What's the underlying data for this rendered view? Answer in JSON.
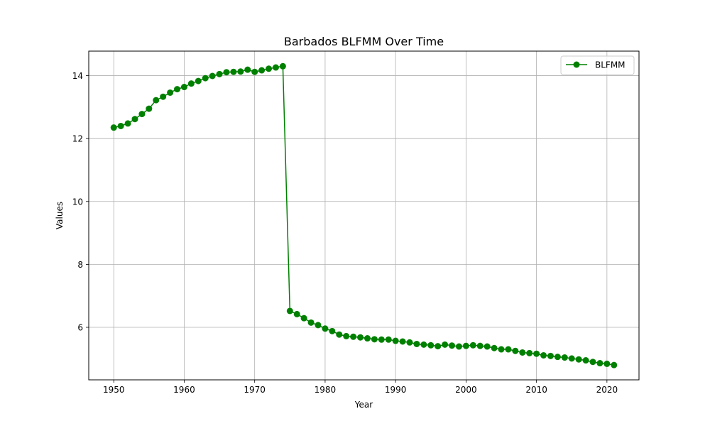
{
  "chart_data": {
    "type": "line",
    "title": "Barbados BLFMM Over Time",
    "xlabel": "Year",
    "ylabel": "Values",
    "xlim": [
      1946.45,
      2024.55
    ],
    "ylim": [
      4.33,
      14.78
    ],
    "x_ticks": [
      1950,
      1960,
      1970,
      1980,
      1990,
      2000,
      2010,
      2020
    ],
    "y_ticks": [
      6,
      8,
      10,
      12,
      14
    ],
    "grid": true,
    "legend_position": "top-right",
    "series": [
      {
        "name": "BLFMM",
        "color": "#008000",
        "marker": "circle",
        "x": [
          1950,
          1951,
          1952,
          1953,
          1954,
          1955,
          1956,
          1957,
          1958,
          1959,
          1960,
          1961,
          1962,
          1963,
          1964,
          1965,
          1966,
          1967,
          1968,
          1969,
          1970,
          1971,
          1972,
          1973,
          1974,
          1975,
          1976,
          1977,
          1978,
          1979,
          1980,
          1981,
          1982,
          1983,
          1984,
          1985,
          1986,
          1987,
          1988,
          1989,
          1990,
          1991,
          1992,
          1993,
          1994,
          1995,
          1996,
          1997,
          1998,
          1999,
          2000,
          2001,
          2002,
          2003,
          2004,
          2005,
          2006,
          2007,
          2008,
          2009,
          2010,
          2011,
          2012,
          2013,
          2014,
          2015,
          2016,
          2017,
          2018,
          2019,
          2020,
          2021
        ],
        "values": [
          12.35,
          12.4,
          12.48,
          12.62,
          12.78,
          12.95,
          13.22,
          13.33,
          13.46,
          13.57,
          13.64,
          13.75,
          13.83,
          13.92,
          13.99,
          14.05,
          14.11,
          14.12,
          14.13,
          14.19,
          14.12,
          14.17,
          14.22,
          14.26,
          14.3,
          6.52,
          6.42,
          6.29,
          6.15,
          6.07,
          5.96,
          5.88,
          5.77,
          5.72,
          5.7,
          5.68,
          5.65,
          5.62,
          5.61,
          5.61,
          5.57,
          5.55,
          5.52,
          5.47,
          5.45,
          5.43,
          5.4,
          5.45,
          5.42,
          5.39,
          5.41,
          5.43,
          5.41,
          5.39,
          5.34,
          5.3,
          5.3,
          5.25,
          5.2,
          5.18,
          5.16,
          5.11,
          5.09,
          5.06,
          5.04,
          5.01,
          4.98,
          4.95,
          4.9,
          4.86,
          4.84,
          4.8
        ]
      }
    ]
  }
}
